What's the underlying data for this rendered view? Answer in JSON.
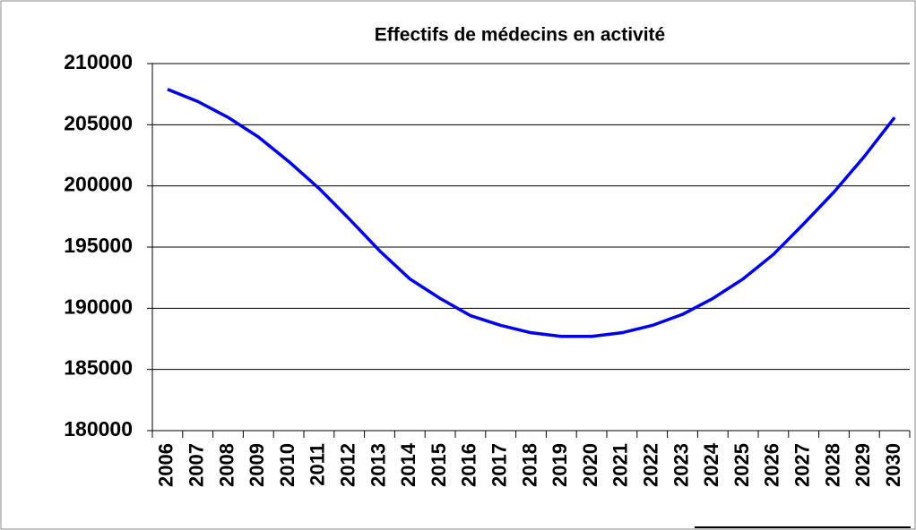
{
  "chart_data": {
    "type": "line",
    "title": "Effectifs de médecins en activité",
    "categories": [
      "2006",
      "2007",
      "2008",
      "2009",
      "2010",
      "2011",
      "2012",
      "2013",
      "2014",
      "2015",
      "2016",
      "2017",
      "2018",
      "2019",
      "2020",
      "2021",
      "2022",
      "2023",
      "2024",
      "2025",
      "2026",
      "2027",
      "2028",
      "2029",
      "2030"
    ],
    "series": [
      {
        "name": "Effectifs",
        "color": "#0000ee",
        "values": [
          207900,
          206900,
          205600,
          204000,
          202000,
          199800,
          197300,
          194700,
          192400,
          190800,
          189400,
          188600,
          188000,
          187700,
          187700,
          188000,
          188600,
          189500,
          190800,
          192400,
          194400,
          196900,
          199500,
          202400,
          205600
        ]
      }
    ],
    "ylim": [
      180000,
      210000
    ],
    "yticks": [
      180000,
      185000,
      190000,
      195000,
      200000,
      205000,
      210000
    ],
    "grid": true
  }
}
